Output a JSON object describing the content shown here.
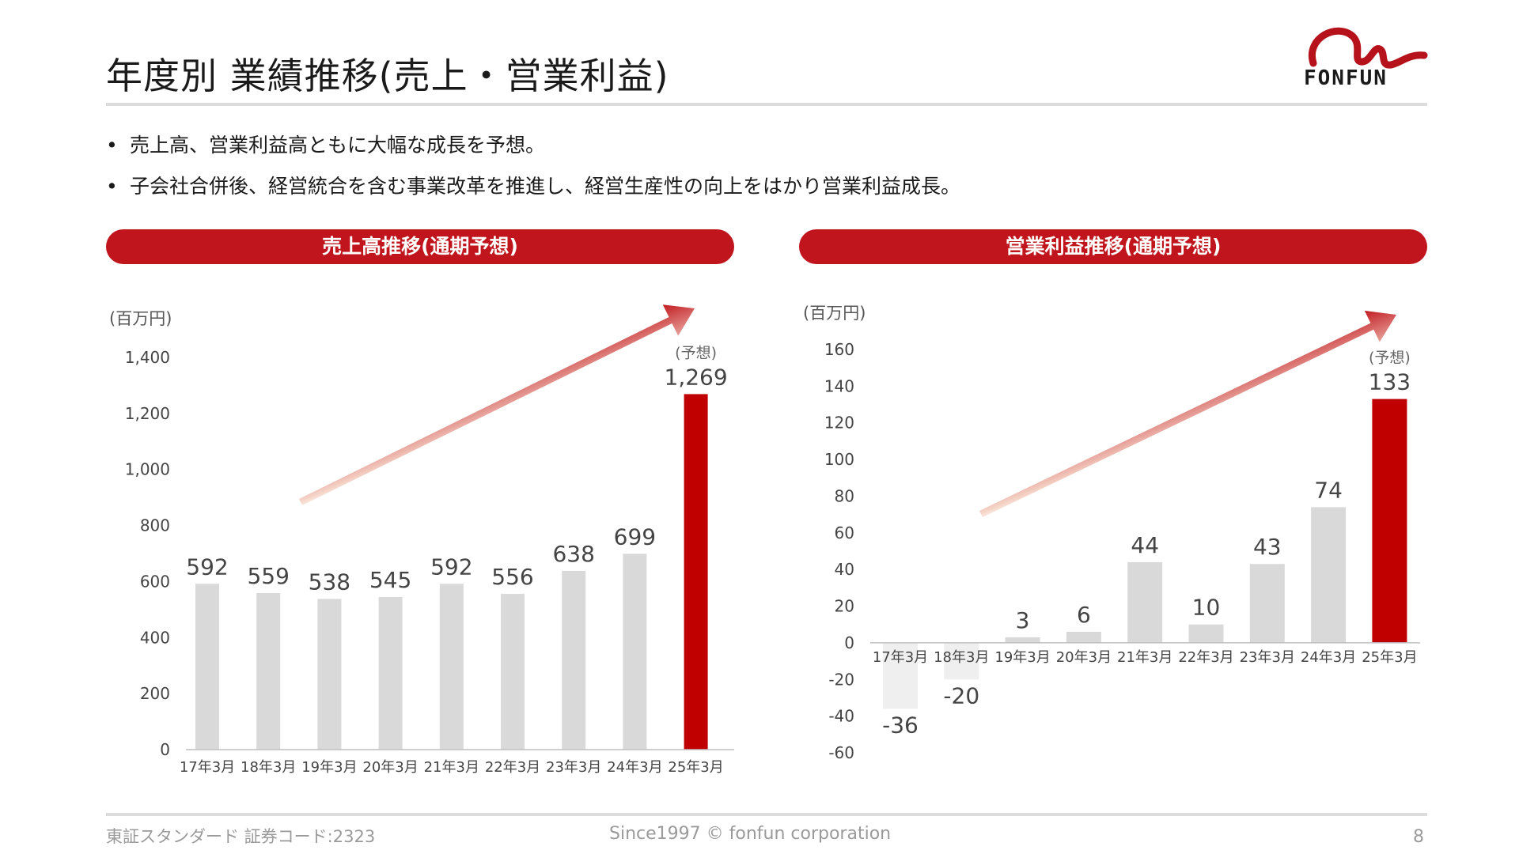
{
  "header": {
    "title": "年度別 業績推移(売上・営業利益)",
    "logo_text": "FONFUN",
    "logo_icon": "fonfun-swirl-logo"
  },
  "bullets": [
    "売上高、営業利益高ともに大幅な成長を予想。",
    "子会社合併後、経営統合を含む事業改革を推進し、経営生産性の向上をはかり営業利益成長。"
  ],
  "colors": {
    "accent": "#c0151c",
    "bar_gray": "#d9d9d9",
    "bar_forecast": "#c00000"
  },
  "chart_data": [
    {
      "type": "bar",
      "title": "売上高推移(通期予想)",
      "unit": "(百万円)",
      "categories": [
        "17年3月",
        "18年3月",
        "19年3月",
        "20年3月",
        "21年3月",
        "22年3月",
        "23年3月",
        "24年3月",
        "25年3月"
      ],
      "values": [
        592,
        559,
        538,
        545,
        592,
        556,
        638,
        699,
        1269
      ],
      "data_labels": [
        "592",
        "559",
        "538",
        "545",
        "592",
        "556",
        "638",
        "699",
        "1,269"
      ],
      "forecast_index": 8,
      "forecast_label": "(予想)",
      "ylim": [
        0,
        1400
      ],
      "yticks": [
        0,
        200,
        400,
        600,
        800,
        1000,
        1200,
        1400
      ],
      "ytick_labels": [
        "0",
        "200",
        "400",
        "600",
        "800",
        "1,000",
        "1,200",
        "1,400"
      ],
      "grid": false,
      "trend_arrow": true
    },
    {
      "type": "bar",
      "title": "営業利益推移(通期予想)",
      "unit": "(百万円)",
      "categories": [
        "17年3月",
        "18年3月",
        "19年3月",
        "20年3月",
        "21年3月",
        "22年3月",
        "23年3月",
        "24年3月",
        "25年3月"
      ],
      "values": [
        -36,
        -20,
        3,
        6,
        44,
        10,
        43,
        74,
        133
      ],
      "data_labels": [
        "-36",
        "-20",
        "3",
        "6",
        "44",
        "10",
        "43",
        "74",
        "133"
      ],
      "forecast_index": 8,
      "forecast_label": "(予想)",
      "ylim": [
        -60,
        160
      ],
      "yticks": [
        -60,
        -40,
        -20,
        0,
        20,
        40,
        60,
        80,
        100,
        120,
        140,
        160
      ],
      "ytick_labels": [
        "-60",
        "-40",
        "-20",
        "0",
        "20",
        "40",
        "60",
        "80",
        "100",
        "120",
        "140",
        "160"
      ],
      "grid": false,
      "trend_arrow": true
    }
  ],
  "footer": {
    "left": "東証スタンダード 証券コード:2323",
    "center": "Since1997 © fonfun corporation",
    "page": "8"
  }
}
